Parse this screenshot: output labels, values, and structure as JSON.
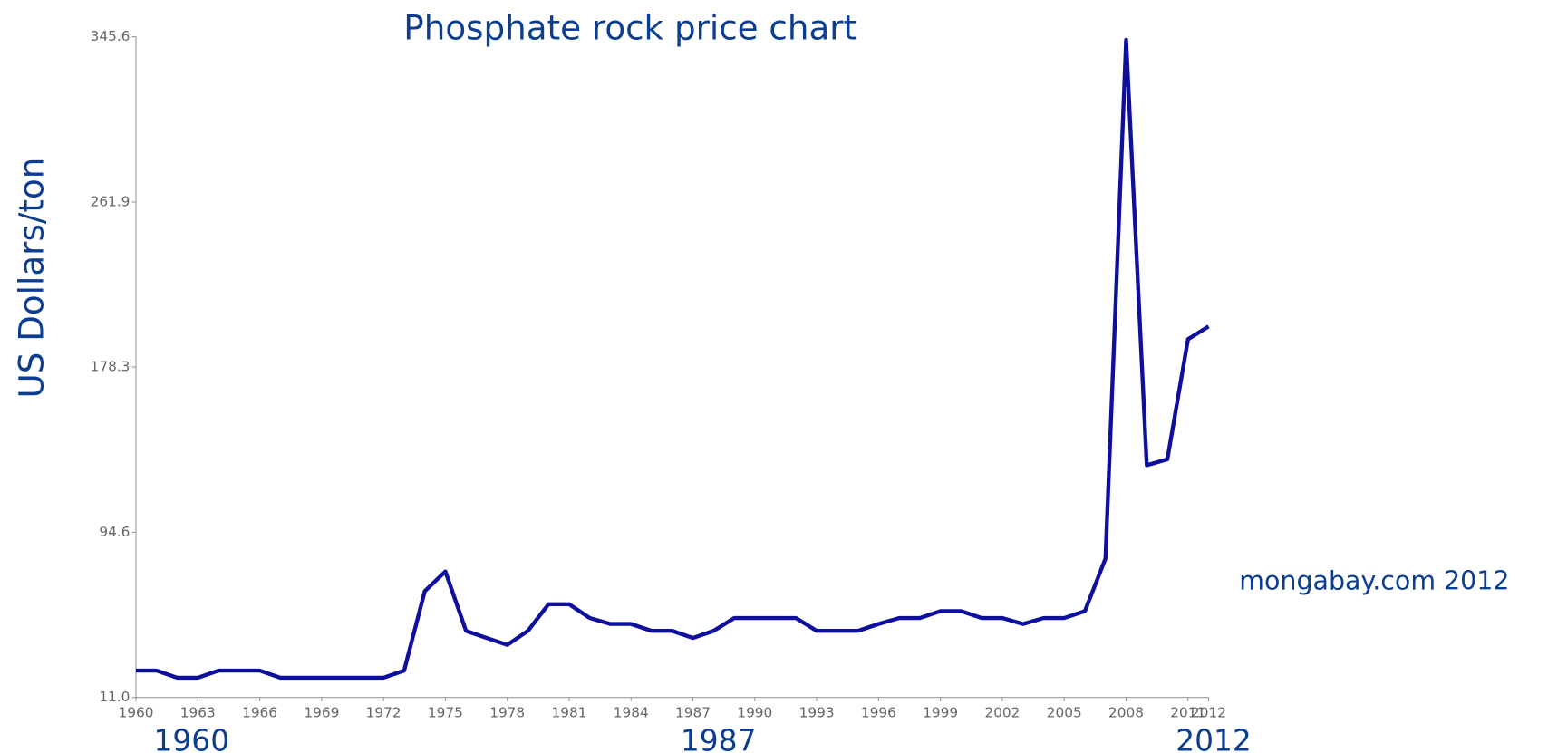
{
  "chart_data": {
    "type": "line",
    "title": "Phosphate rock price chart",
    "y_label": "US Dollars/ton",
    "annotations": [
      "mongabay.com 2012",
      "1960",
      "1987",
      "2012"
    ],
    "x": [
      1960,
      1961,
      1962,
      1963,
      1964,
      1965,
      1966,
      1967,
      1968,
      1969,
      1970,
      1971,
      1972,
      1973,
      1974,
      1975,
      1976,
      1977,
      1978,
      1979,
      1980,
      1981,
      1982,
      1983,
      1984,
      1985,
      1986,
      1987,
      1988,
      1989,
      1990,
      1991,
      1992,
      1993,
      1994,
      1995,
      1996,
      1997,
      1998,
      1999,
      2000,
      2001,
      2002,
      2003,
      2004,
      2005,
      2006,
      2007,
      2008,
      2009,
      2010,
      2011,
      2012
    ],
    "series": [
      {
        "name": "Phosphate rock",
        "color": "#0f0f9e",
        "values": [
          24.6,
          24.6,
          21,
          21,
          24.6,
          24.6,
          24.6,
          21,
          21,
          21,
          21,
          21,
          21,
          24.6,
          64.8,
          74.8,
          44.7,
          41.1,
          37.6,
          44.7,
          58.2,
          58.2,
          51.2,
          48.2,
          48.2,
          44.7,
          44.7,
          41.1,
          44.7,
          51.2,
          51.2,
          51.2,
          51.2,
          44.7,
          44.7,
          44.7,
          48.2,
          51.2,
          51.2,
          54.7,
          54.7,
          51.2,
          51.2,
          48.2,
          51.2,
          51.2,
          54.7,
          81.3,
          344,
          128.6,
          131.6,
          192.4,
          198.9
        ]
      }
    ],
    "xlim": [
      1960,
      2012
    ],
    "xticks": [
      1960,
      1963,
      1966,
      1969,
      1972,
      1975,
      1978,
      1981,
      1984,
      1987,
      1990,
      1993,
      1996,
      1999,
      2002,
      2005,
      2008,
      2011,
      2012
    ],
    "ylim": [
      11,
      345.6
    ],
    "yticks": [
      {
        "value": 11,
        "label": "11.0"
      },
      94.6,
      178.3,
      261.9,
      345.6
    ]
  }
}
